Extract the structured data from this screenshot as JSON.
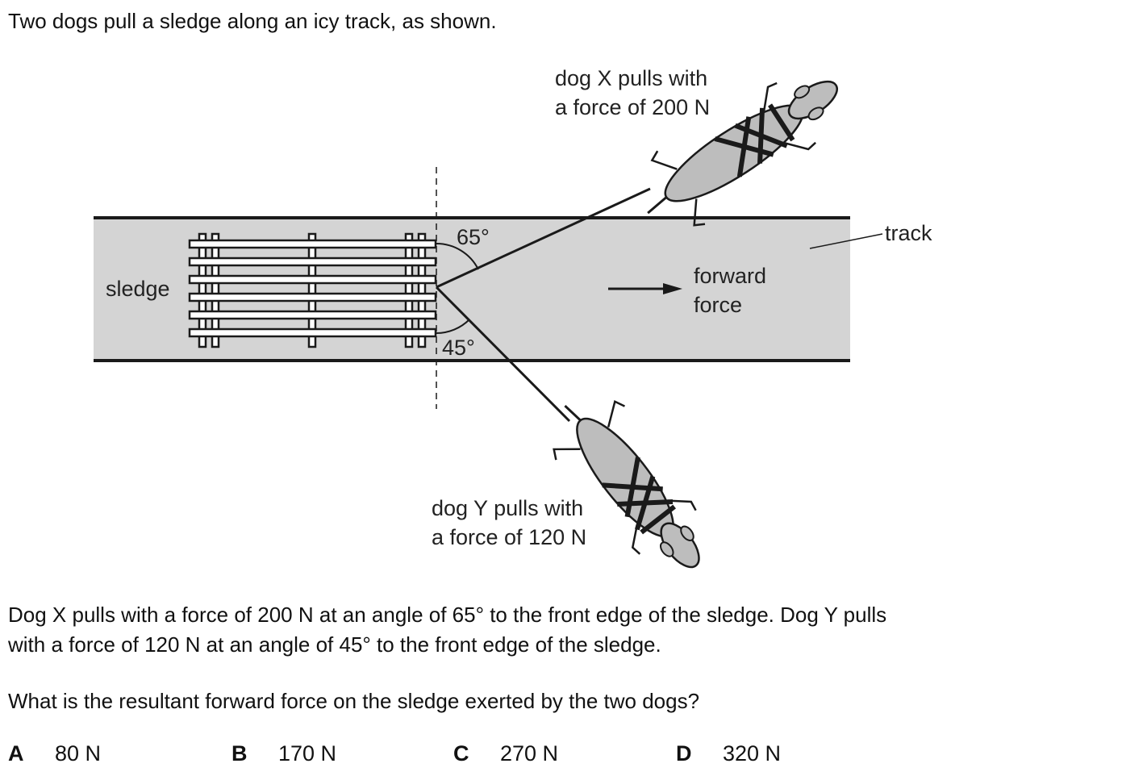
{
  "intro": "Two dogs pull a sledge along an icy track, as shown.",
  "diagram": {
    "dog_x_line1": "dog X pulls with",
    "dog_x_line2": "a force of 200 N",
    "dog_y_line1": "dog Y pulls with",
    "dog_y_line2": "a force of 120 N",
    "angle_top": "65°",
    "angle_bottom": "45°",
    "track_label": "track",
    "sledge_label": "sledge",
    "forward_line1": "forward",
    "forward_line2": "force"
  },
  "body_line1": "Dog X pulls with a force of 200 N at an angle of 65° to the front edge of the sledge. Dog Y pulls",
  "body_line2": "with a force of 120 N at an angle of 45° to the front edge of the sledge.",
  "question": "What is the resultant forward force on the sledge exerted by the two dogs?",
  "options": [
    {
      "letter": "A",
      "value": "80 N"
    },
    {
      "letter": "B",
      "value": "170 N"
    },
    {
      "letter": "C",
      "value": "270 N"
    },
    {
      "letter": "D",
      "value": "320 N"
    }
  ]
}
